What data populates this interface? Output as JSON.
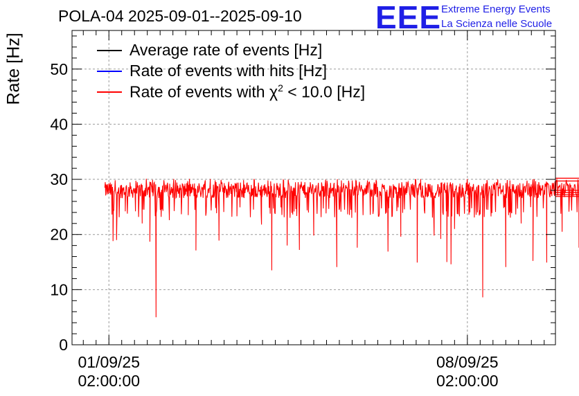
{
  "chart_data": {
    "type": "line",
    "title": "POLA-04 2025-09-01--2025-09-10",
    "ylabel": "Rate [Hz]",
    "xlabel": "",
    "ylim": [
      0,
      57
    ],
    "yticks": [
      0,
      10,
      20,
      30,
      40,
      50
    ],
    "xlim_days": [
      -0.72,
      8.72
    ],
    "xticks": [
      {
        "day": 0,
        "date": "01/09/25",
        "time": "02:00:00"
      },
      {
        "day": 7,
        "date": "08/09/25",
        "time": "02:00:00"
      }
    ],
    "grid": true,
    "legend_position": "top-left",
    "series": [
      {
        "name": "Average rate of events [Hz]",
        "color": "#000000",
        "visible": false
      },
      {
        "name": "Rate of events with hits [Hz]",
        "color": "#0000ff",
        "visible": false
      },
      {
        "name": "Rate of events with χ2 < 10.0 [Hz]",
        "color": "#ff0000",
        "visible": true,
        "x_range_days": [
          -0.08,
          9.6
        ],
        "baseline_band": [
          25.0,
          29.5
        ],
        "dips": [
          {
            "day": 0.08,
            "value": 18.8
          },
          {
            "day": 0.15,
            "value": 19.0
          },
          {
            "day": 0.32,
            "value": 24.2
          },
          {
            "day": 0.65,
            "value": 22.0
          },
          {
            "day": 0.8,
            "value": 18.7
          },
          {
            "day": 0.92,
            "value": 5.0
          },
          {
            "day": 1.18,
            "value": 22.6
          },
          {
            "day": 1.55,
            "value": 23.5
          },
          {
            "day": 1.7,
            "value": 17.1
          },
          {
            "day": 2.15,
            "value": 18.9
          },
          {
            "day": 2.5,
            "value": 23.3
          },
          {
            "day": 2.98,
            "value": 21.8
          },
          {
            "day": 3.18,
            "value": 13.5
          },
          {
            "day": 3.48,
            "value": 18.0
          },
          {
            "day": 3.72,
            "value": 17.2
          },
          {
            "day": 4.0,
            "value": 19.8
          },
          {
            "day": 4.45,
            "value": 14.1
          },
          {
            "day": 4.85,
            "value": 17.6
          },
          {
            "day": 5.45,
            "value": 16.9
          },
          {
            "day": 5.7,
            "value": 19.6
          },
          {
            "day": 6.02,
            "value": 14.9
          },
          {
            "day": 6.35,
            "value": 19.8
          },
          {
            "day": 6.48,
            "value": 19.2
          },
          {
            "day": 6.6,
            "value": 15.0
          },
          {
            "day": 6.68,
            "value": 14.6
          },
          {
            "day": 6.75,
            "value": 21.0
          },
          {
            "day": 7.3,
            "value": 8.6
          },
          {
            "day": 7.75,
            "value": 14.1
          },
          {
            "day": 8.05,
            "value": 22.0
          },
          {
            "day": 8.28,
            "value": 15.2
          },
          {
            "day": 8.55,
            "value": 14.9
          },
          {
            "day": 8.85,
            "value": 20.5
          },
          {
            "day": 9.18,
            "value": 17.6
          }
        ],
        "tail_levels": [
          30.2,
          29.7,
          28.0,
          27.6,
          27.2,
          26.9
        ]
      }
    ]
  },
  "logo": {
    "mark": "EEE",
    "line1": "Extreme Energy Events",
    "line2": "La Scienza nelle Scuole"
  },
  "legend": {
    "items": [
      {
        "label_prefix": "Average rate of events [Hz]",
        "sup": "",
        "label_suffix": "",
        "color": "#000000"
      },
      {
        "label_prefix": "Rate of events with hits [Hz]",
        "sup": "",
        "label_suffix": "",
        "color": "#0000ff"
      },
      {
        "label_prefix": "Rate of events with χ",
        "sup": "2",
        "label_suffix": " < 10.0 [Hz]",
        "color": "#ff0000"
      }
    ]
  }
}
